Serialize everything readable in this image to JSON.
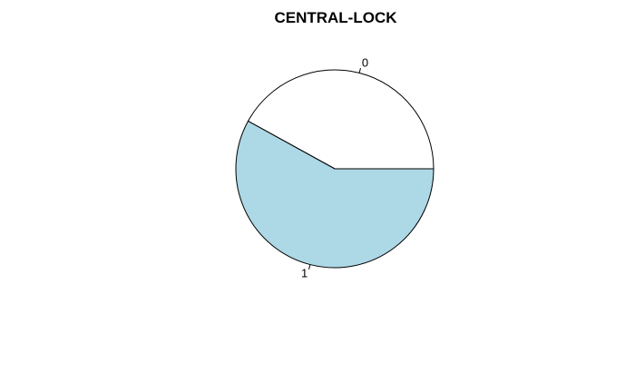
{
  "chart_data": {
    "type": "pie",
    "title": "CENTRAL-LOCK",
    "categories": [
      "0",
      "1"
    ],
    "values": [
      0.42,
      0.58
    ],
    "colors": [
      "#ffffff",
      "#add8e6"
    ],
    "start_angle_deg": 0,
    "direction": "counterclockwise"
  }
}
